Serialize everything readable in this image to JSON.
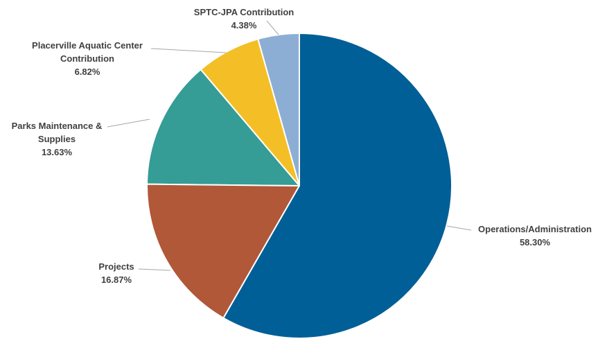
{
  "chart_data": {
    "type": "pie",
    "categories": [
      "Operations/Administration",
      "Projects",
      "Parks Maintenance & Supplies",
      "Placerville Aquatic Center Contribution",
      "SPTC-JPA Contribution"
    ],
    "values": [
      58.3,
      16.87,
      13.63,
      6.82,
      4.38
    ],
    "value_labels": [
      "58.30%",
      "16.87%",
      "13.63%",
      "6.82%",
      "4.38%"
    ],
    "colors": [
      "#005f96",
      "#b05838",
      "#359c96",
      "#f4bf26",
      "#8daed4"
    ]
  }
}
